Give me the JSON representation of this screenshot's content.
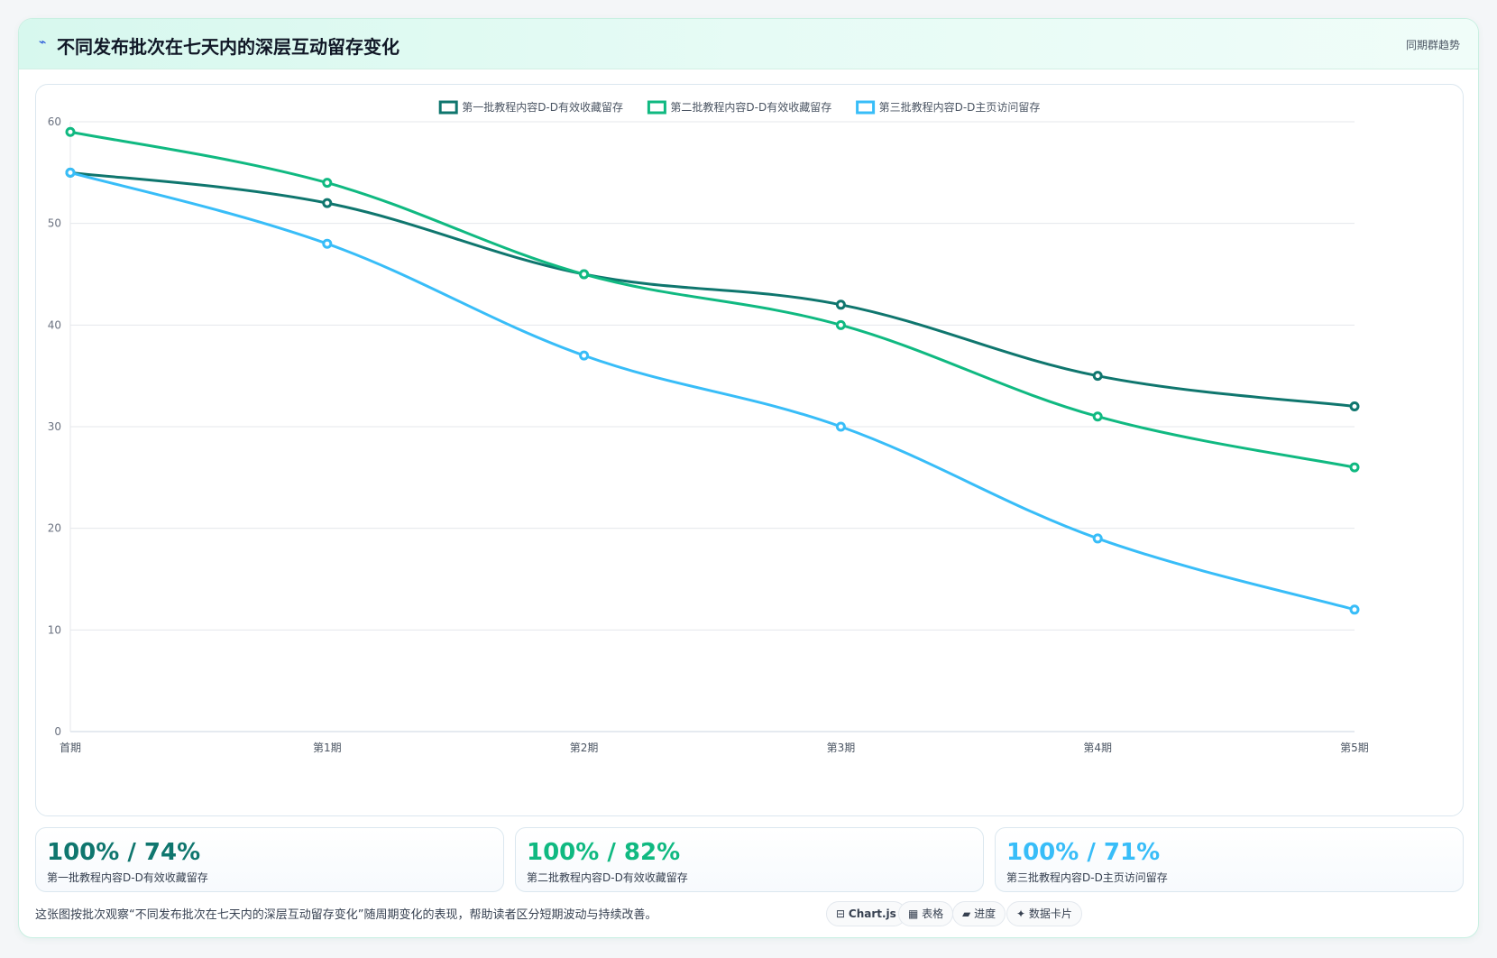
{
  "header": {
    "pulse_icon": "⌁",
    "title": "不同发布批次在七天内的深层互动留存变化",
    "tag": "同期群趋势"
  },
  "chart_data": {
    "type": "line",
    "categories": [
      "首期",
      "第1期",
      "第2期",
      "第3期",
      "第4期",
      "第5期"
    ],
    "ylim": [
      0,
      60
    ],
    "yticks": [
      0,
      10,
      20,
      30,
      40,
      50,
      60
    ],
    "grid": true,
    "legend_position": "top-center",
    "series": [
      {
        "name": "第一批教程内容D-D有效收藏留存",
        "color": "#0f766e",
        "values": [
          55,
          52,
          45,
          42,
          35,
          32
        ]
      },
      {
        "name": "第二批教程内容D-D有效收藏留存",
        "color": "#10b981",
        "values": [
          59,
          54,
          45,
          40,
          31,
          26
        ]
      },
      {
        "name": "第三批教程内容D-D主页访问留存",
        "color": "#38bdf8",
        "values": [
          55,
          48,
          37,
          30,
          19,
          12
        ]
      }
    ]
  },
  "stats": [
    {
      "value": "100% / 74%",
      "label": "第一批教程内容D-D有效收藏留存",
      "color": "#0f766e"
    },
    {
      "value": "100% / 82%",
      "label": "第二批教程内容D-D有效收藏留存",
      "color": "#10b981"
    },
    {
      "value": "100% / 71%",
      "label": "第三批教程内容D-D主页访问留存",
      "color": "#38bdf8"
    }
  ],
  "footer": {
    "note": "这张图按批次观察“不同发布批次在七天内的深层互动留存变化”随周期变化的表现，帮助读者区分短期波动与持续改善。"
  },
  "chips": [
    {
      "icon": "⊟",
      "label": "Chart.js"
    },
    {
      "icon": "▦",
      "label": "表格"
    },
    {
      "icon": "▰",
      "label": "进度"
    },
    {
      "icon": "✦",
      "label": "数据卡片"
    }
  ]
}
